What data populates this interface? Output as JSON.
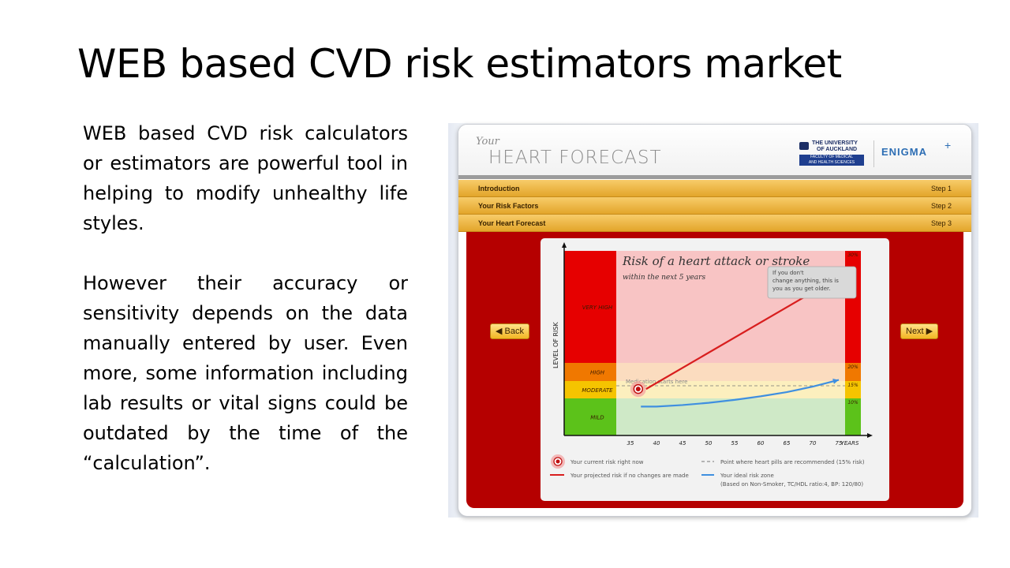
{
  "slide": {
    "title": "WEB based CVD risk estimators market",
    "paragraph1": "WEB based CVD risk calculators or estimators are powerful tool in helping to modify unhealthy life styles.",
    "paragraph2_main": "However their accuracy or sensitivity depends on the data manually entered by user. Even more, some information including lab results or vital signs could be outdated by the",
    "paragraph2_tail": "time of the “calculation”."
  },
  "app": {
    "logo_your": "Your",
    "logo_main": "HEART FORECAST",
    "university_line1": "THE UNIVERSITY",
    "university_line2": "OF AUCKLAND",
    "faculty_line1": "FACULTY OF MEDICAL",
    "faculty_line2": "AND HEALTH SCIENCES",
    "partner": "ENIGMA",
    "steps": [
      {
        "name": "Introduction",
        "step": "Step 1"
      },
      {
        "name": "Your Risk Factors",
        "step": "Step 2"
      },
      {
        "name": "Your Heart Forecast",
        "step": "Step 3"
      }
    ],
    "back_label": "◀ Back",
    "next_label": "Next ▶"
  },
  "chart_data": {
    "type": "line",
    "title": "Risk of a heart attack or stroke",
    "subtitle": "within the next 5 years",
    "ylabel": "LEVEL OF RISK",
    "xlabel": "YEARS",
    "x_ticks": [
      "35",
      "40",
      "45",
      "50",
      "55",
      "60",
      "65",
      "70",
      "75"
    ],
    "xlim": [
      35,
      76
    ],
    "ylim": [
      0,
      32
    ],
    "zones": [
      {
        "label": "VERY HIGH",
        "from": 20,
        "to": 32,
        "color": "#e60000"
      },
      {
        "label": "HIGH",
        "from": 15,
        "to": 20,
        "color": "#f07800"
      },
      {
        "label": "MODERATE",
        "from": 10,
        "to": 15,
        "color": "#f5c400"
      },
      {
        "label": "MILD",
        "from": 0,
        "to": 10,
        "color": "#5cc21a"
      }
    ],
    "zone_tick_labels": [
      "30%",
      "20%",
      "15%",
      "10%"
    ],
    "medication_label": "Medication starts here",
    "medication_value": 15,
    "callout": "If you don't change anything, this is you as you get older.",
    "series": [
      {
        "name": "Your projected risk if no changes are made",
        "color": "#d81e1e",
        "x": [
          38,
          75
        ],
        "y": [
          12.7,
          29.2
        ]
      },
      {
        "name": "Your ideal risk zone",
        "color": "#3f8fe0",
        "x": [
          37,
          40,
          45,
          50,
          55,
          60,
          65,
          70,
          75
        ],
        "y": [
          7.8,
          7.8,
          8.2,
          8.8,
          9.6,
          10.6,
          11.8,
          13.4,
          15.3
        ]
      }
    ],
    "current_point": {
      "x": 38,
      "y": 12.7
    },
    "legend": [
      {
        "icon": "target-icon",
        "text": "Your current risk right now"
      },
      {
        "icon": "red-line-icon",
        "text": "Your projected risk if no changes are made"
      },
      {
        "icon": "dashed-line-icon",
        "text": "Point where heart pills are recommended (15% risk)"
      },
      {
        "icon": "blue-line-icon",
        "text": "Your ideal risk zone"
      }
    ],
    "legend_note": "(Based on Non-Smoker, TC/HDL ratio:4, BP: 120/80)"
  }
}
